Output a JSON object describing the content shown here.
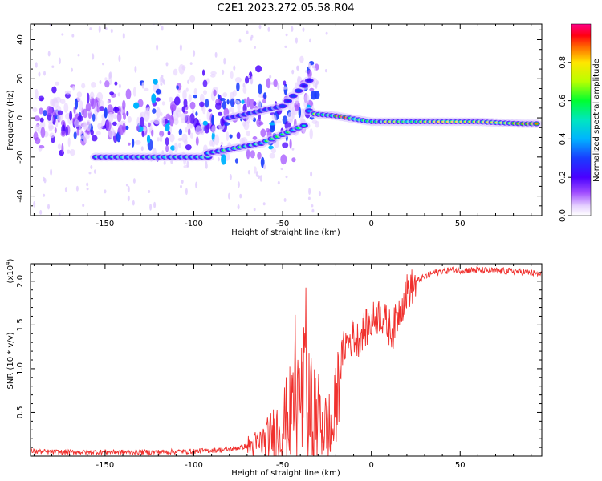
{
  "title": "C2E1.2023.272.05.58.R04",
  "colors": {
    "snr_line": "#f0302d",
    "spectrogram_colormap": [
      "#ffffff",
      "#e8d4ff",
      "#9c4dff",
      "#5a00ff",
      "#1a2bff",
      "#00b4ff",
      "#00e6c8",
      "#00ff40",
      "#c8ff00",
      "#ffe600",
      "#ff6a00",
      "#ff0000",
      "#ff0080"
    ]
  },
  "chart_data": [
    {
      "type": "heatmap",
      "name": "spectrogram",
      "xlabel": "Height of straight line (km)",
      "ylabel": "Frequency (Hz)",
      "xlim": [
        -192,
        96
      ],
      "ylim": [
        -50,
        48
      ],
      "xticks": [
        -150,
        -100,
        -50,
        0,
        50
      ],
      "yticks": [
        -40,
        -20,
        0,
        20,
        40
      ],
      "grid": false,
      "colorbar": {
        "label": "Normalized spectral amplitude",
        "ticks": [
          "0.0",
          "0.2",
          "0.4",
          "0.6",
          "0.8"
        ],
        "range": [
          0,
          1
        ]
      },
      "traces": [
        {
          "component": "scattered noise",
          "x": [
            -190,
            -30
          ],
          "y_center": 0,
          "spread_hz": 12,
          "amplitude": 0.25
        },
        {
          "component": "lower track",
          "x": [
            -155,
            -92
          ],
          "y": -20,
          "amplitude": 0.5
        },
        {
          "component": "lower rising track",
          "x": [
            -92,
            -62,
            -38,
            -34
          ],
          "y": [
            -18,
            -13,
            -4,
            6
          ],
          "amplitude": 0.55
        },
        {
          "component": "upper rising track",
          "x": [
            -80,
            -50,
            -34
          ],
          "y": [
            0,
            6,
            20
          ],
          "amplitude": 0.35
        },
        {
          "component": "main track",
          "x": [
            -32,
            -20,
            0,
            20,
            60,
            85,
            95
          ],
          "y": [
            2,
            1,
            -2,
            -2,
            -2,
            -3,
            -3
          ],
          "amplitude": 0.95
        }
      ]
    },
    {
      "type": "line",
      "name": "snr",
      "xlabel": "Height of straight line (km)",
      "ylabel": "SNR (10 * v/v)",
      "y_multiplier": "(x10^4)",
      "y_multiplier_base": "(x10",
      "y_multiplier_exp": "4",
      "y_multiplier_close": ")",
      "xlim": [
        -192,
        96
      ],
      "ylim": [
        0,
        2.2
      ],
      "xticks": [
        -150,
        -100,
        -50,
        0,
        50
      ],
      "yticks": [
        0.5,
        1.0,
        1.5,
        2.0
      ],
      "grid": false,
      "series": [
        {
          "x": [
            -192,
            -180,
            -160,
            -140,
            -120,
            -100,
            -80,
            -70,
            -65,
            -60,
            -55,
            -50,
            -45,
            -40,
            -38,
            -35,
            -30,
            -28,
            -25,
            -22,
            -20,
            -18,
            -15,
            -12,
            -10,
            -8,
            -5,
            -2,
            0,
            2,
            5,
            8,
            10,
            12,
            15,
            18,
            20,
            25,
            30,
            35,
            40,
            45,
            50,
            60,
            70,
            80,
            90,
            96
          ],
          "y": [
            0.06,
            0.05,
            0.05,
            0.05,
            0.05,
            0.06,
            0.08,
            0.12,
            0.15,
            0.2,
            0.3,
            0.4,
            0.55,
            0.7,
            0.8,
            0.6,
            0.5,
            0.45,
            0.35,
            0.3,
            0.6,
            1.0,
            1.3,
            1.35,
            1.4,
            1.35,
            1.45,
            1.5,
            1.55,
            1.6,
            1.65,
            1.55,
            1.5,
            1.45,
            1.65,
            1.8,
            1.9,
            2.0,
            2.05,
            2.1,
            2.12,
            2.13,
            2.13,
            2.13,
            2.12,
            2.12,
            2.1,
            2.08
          ]
        }
      ]
    }
  ]
}
